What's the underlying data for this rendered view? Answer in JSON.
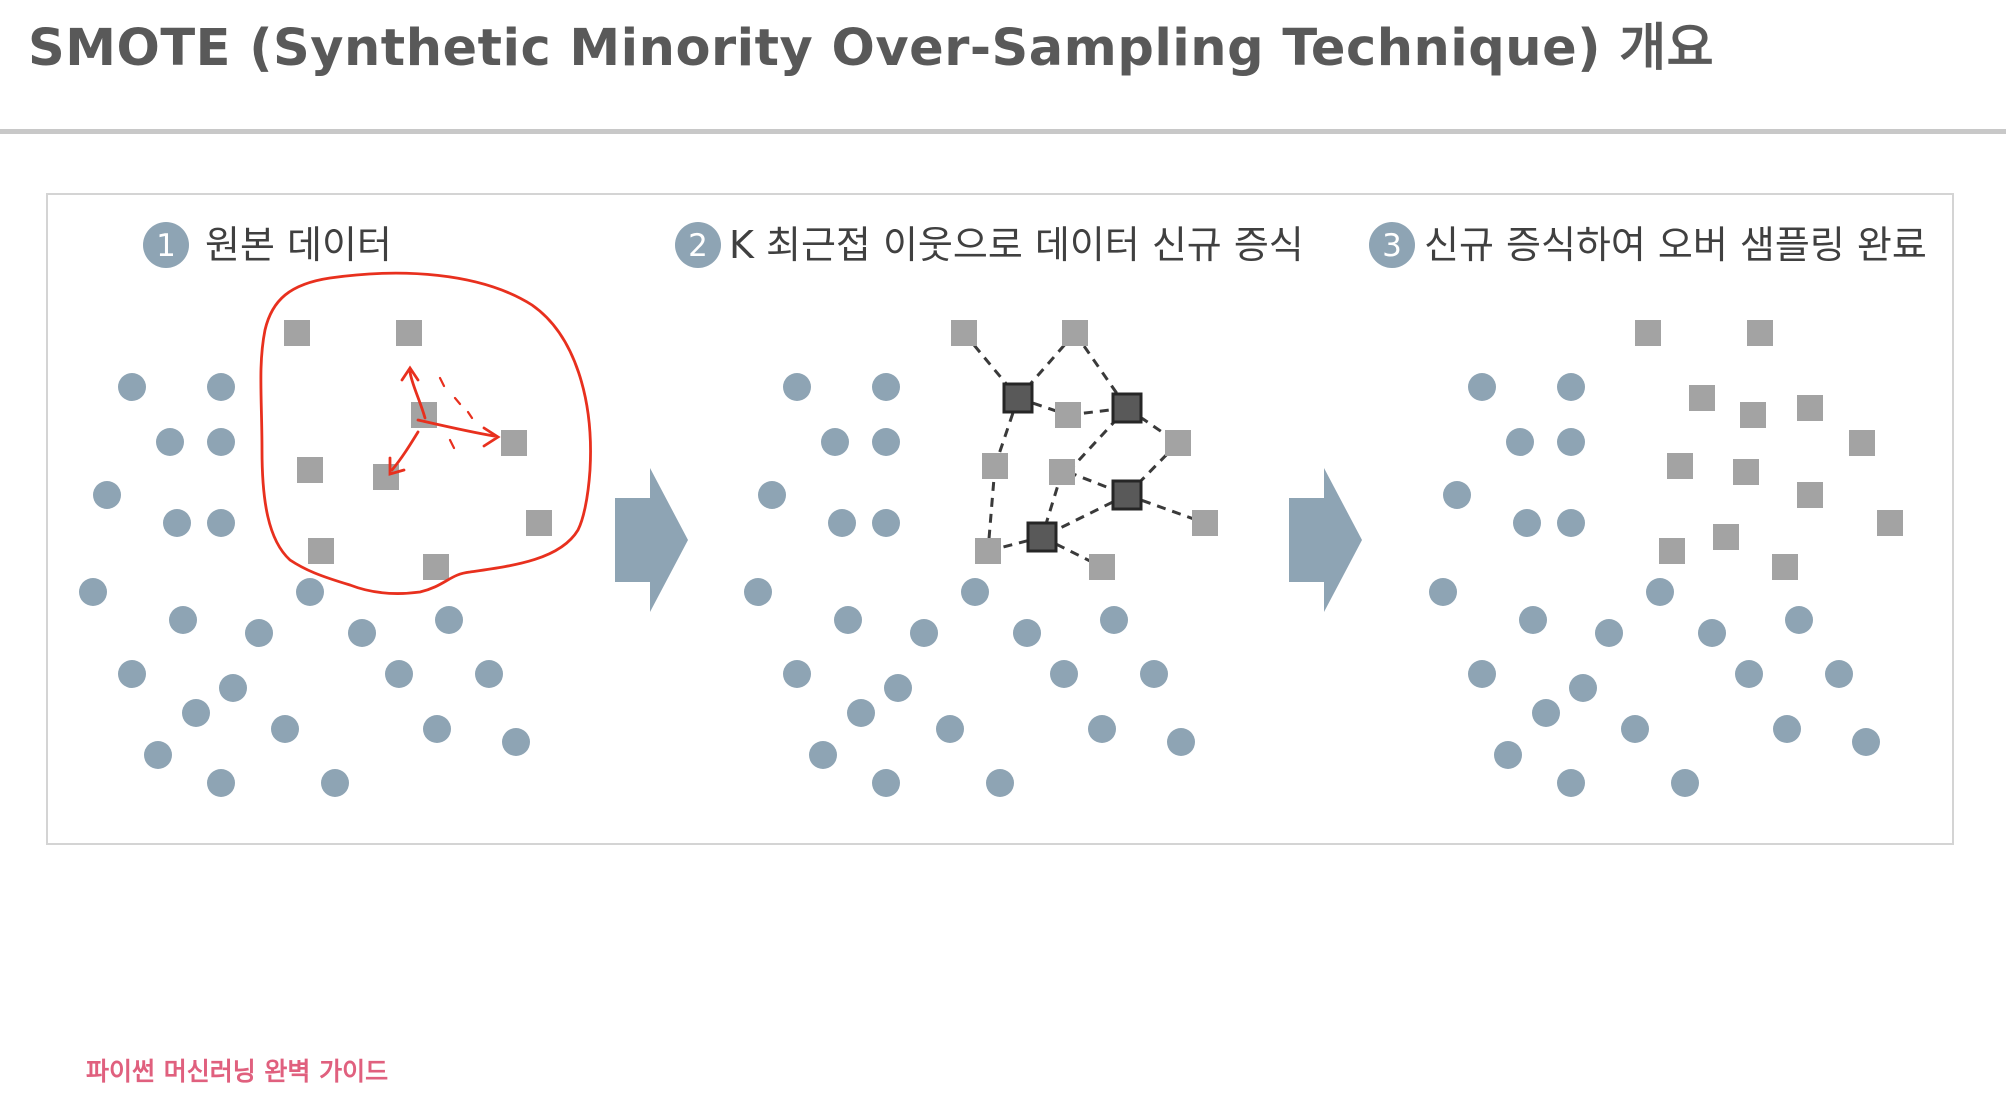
{
  "title": "SMOTE (Synthetic Minority Over-Sampling Technique) 개요",
  "steps": [
    {
      "number": "1",
      "label": "원본 데이터"
    },
    {
      "number": "2",
      "label": "K 최근접 이웃으로 데이터 신규 증식"
    },
    {
      "number": "3",
      "label": "신규 증식하여 오버 샘플링 완료"
    }
  ],
  "footer": "파이썬 머신러닝 완벽 가이드",
  "colors": {
    "majority_circle": "#8ea4b4",
    "minority_square": "#a3a3a3",
    "synthetic_square": "#595959",
    "arrow": "#8ea4b4",
    "annotation": "#e8301e",
    "footer_text": "#e0607e"
  },
  "icons": [
    "step-number-badge",
    "right-arrow"
  ]
}
